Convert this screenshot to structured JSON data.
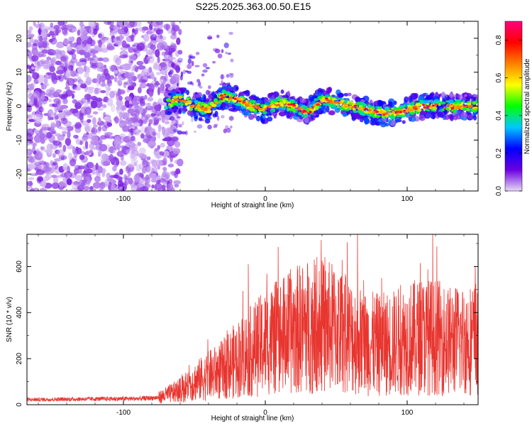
{
  "title": "S225.2025.363.00.50.E15",
  "chart_data": [
    {
      "type": "heatmap",
      "title": "",
      "xlabel": "Height of straight line (km)",
      "ylabel": "Frequency (Hz)",
      "xlim": [
        -168,
        150
      ],
      "ylim": [
        -25,
        25
      ],
      "xticks": [
        -100,
        0,
        100
      ],
      "yticks": [
        -20,
        -10,
        0,
        10,
        20
      ],
      "colorbar": {
        "label": "Normalized spectral amplitude",
        "range": [
          0,
          0.9
        ],
        "ticks": [
          0.0,
          0.2,
          0.4,
          0.6,
          0.8
        ],
        "colormap": [
          "#e6d9f5",
          "#6a00e0",
          "#0000ff",
          "#00c8ff",
          "#00ff00",
          "#ffff00",
          "#ff8000",
          "#ff0000",
          "#ff0080"
        ]
      },
      "features": {
        "noise_region_x": [
          -168,
          -70
        ],
        "noise_amplitude": 0.1,
        "signal_start_x": -70,
        "signal_track_freq": [
          [
            -70,
            1
          ],
          [
            -60,
            2
          ],
          [
            -50,
            0
          ],
          [
            -40,
            -1
          ],
          [
            -30,
            3
          ],
          [
            -20,
            2
          ],
          [
            -10,
            0
          ],
          [
            0,
            -1
          ],
          [
            10,
            1
          ],
          [
            20,
            0
          ],
          [
            30,
            -2
          ],
          [
            40,
            2
          ],
          [
            50,
            1
          ],
          [
            60,
            0
          ],
          [
            70,
            -1
          ],
          [
            80,
            -2
          ],
          [
            90,
            -2
          ],
          [
            100,
            -1
          ],
          [
            110,
            0
          ],
          [
            120,
            0
          ],
          [
            130,
            0
          ],
          [
            140,
            0
          ],
          [
            150,
            0
          ]
        ],
        "signal_peak_amplitude": 0.9
      }
    },
    {
      "type": "line",
      "title": "",
      "xlabel": "Height of straight line (km)",
      "ylabel": "SNR (10 * v/v)",
      "xlim": [
        -168,
        150
      ],
      "ylim": [
        0,
        740
      ],
      "xticks": [
        -100,
        0,
        100
      ],
      "yticks": [
        0,
        200,
        400,
        600
      ],
      "series_color": "#e8352f",
      "envelope_points": [
        [
          -168,
          25
        ],
        [
          -130,
          28
        ],
        [
          -90,
          30
        ],
        [
          -75,
          35
        ],
        [
          -60,
          70
        ],
        [
          -50,
          110
        ],
        [
          -40,
          140
        ],
        [
          -30,
          170
        ],
        [
          -20,
          220
        ],
        [
          -10,
          260
        ],
        [
          0,
          300
        ],
        [
          10,
          330
        ],
        [
          20,
          360
        ],
        [
          30,
          380
        ],
        [
          40,
          380
        ],
        [
          50,
          370
        ],
        [
          60,
          330
        ],
        [
          70,
          300
        ],
        [
          80,
          290
        ],
        [
          90,
          300
        ],
        [
          100,
          320
        ],
        [
          110,
          330
        ],
        [
          120,
          330
        ],
        [
          130,
          310
        ],
        [
          150,
          320
        ]
      ],
      "spikes": [
        [
          -12,
          610
        ],
        [
          30,
          550
        ],
        [
          38,
          580
        ],
        [
          42,
          640
        ],
        [
          65,
          740
        ],
        [
          82,
          550
        ],
        [
          118,
          745
        ],
        [
          148,
          600
        ]
      ]
    }
  ]
}
